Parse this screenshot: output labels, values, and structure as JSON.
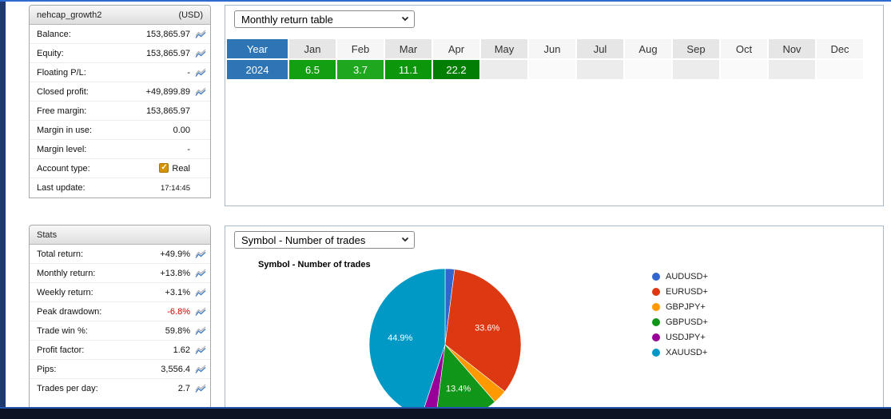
{
  "colors": {
    "accent_blue": "#2e75b5",
    "negative_red": "#cc0000",
    "edge_blue": "#2e6bd0",
    "left_strip_navy": "#1e3a6e",
    "bottom_bar_navy": "#0c1424"
  },
  "account_panel": {
    "title": "nehcap_growth2",
    "currency": "(USD)",
    "rows": [
      {
        "label": "Balance:",
        "value": "153,865.97",
        "icon": true
      },
      {
        "label": "Equity:",
        "value": "153,865.97",
        "icon": true
      },
      {
        "label": "Floating P/L:",
        "value": "-",
        "icon": true
      },
      {
        "label": "Closed profit:",
        "value": "+49,899.89",
        "icon": true
      },
      {
        "label": "Free margin:",
        "value": "153,865.97",
        "icon": false
      },
      {
        "label": "Margin in use:",
        "value": "0.00",
        "icon": false
      },
      {
        "label": "Margin level:",
        "value": "-",
        "icon": false
      },
      {
        "label": "Account type:",
        "value": "Real",
        "icon": false,
        "checkbox": true
      },
      {
        "label": "Last update:",
        "value": "17:14:45",
        "icon": false,
        "small": true
      }
    ]
  },
  "stats_panel": {
    "title": "Stats",
    "rows": [
      {
        "label": "Total return:",
        "value": "+49.9%",
        "icon": true
      },
      {
        "label": "Monthly return:",
        "value": "+13.8%",
        "icon": true
      },
      {
        "label": "Weekly return:",
        "value": "+3.1%",
        "icon": true
      },
      {
        "label": "Peak drawdown:",
        "value": "-6.8%",
        "icon": true,
        "negative": true
      },
      {
        "label": "Trade win %:",
        "value": "59.8%",
        "icon": true
      },
      {
        "label": "Profit factor:",
        "value": "1.62",
        "icon": true
      },
      {
        "label": "Pips:",
        "value": "3,556.4",
        "icon": true
      },
      {
        "label": "Trades per day:",
        "value": "2.7",
        "icon": true
      }
    ]
  },
  "monthly_panel": {
    "view_select": "Monthly return table",
    "columns": [
      "Year",
      "Jan",
      "Feb",
      "Mar",
      "Apr",
      "May",
      "Jun",
      "Jul",
      "Aug",
      "Sep",
      "Oct",
      "Nov",
      "Dec"
    ],
    "rows": [
      {
        "year": "2024",
        "values": [
          "6.5",
          "3.7",
          "11.1",
          "22.2",
          "",
          "",
          "",
          "",
          "",
          "",
          "",
          ""
        ],
        "value_colors": [
          "#12a012",
          "#1fa81f",
          "#0b960b",
          "#027e02",
          "",
          "",
          "",
          "",
          "",
          "",
          "",
          ""
        ]
      }
    ]
  },
  "symbol_panel": {
    "view_select": "Symbol - Number of trades",
    "chart_title": "Symbol - Number of trades"
  },
  "chart_data": [
    {
      "type": "table",
      "title": "Monthly return table",
      "columns": [
        "Year",
        "Jan",
        "Feb",
        "Mar",
        "Apr",
        "May",
        "Jun",
        "Jul",
        "Aug",
        "Sep",
        "Oct",
        "Nov",
        "Dec"
      ],
      "rows": [
        {
          "Year": 2024,
          "Jan": 6.5,
          "Feb": 3.7,
          "Mar": 11.1,
          "Apr": 22.2,
          "May": null,
          "Jun": null,
          "Jul": null,
          "Aug": null,
          "Sep": null,
          "Oct": null,
          "Nov": null,
          "Dec": null
        }
      ]
    },
    {
      "type": "pie",
      "title": "Symbol - Number of trades",
      "legend_position": "right",
      "start_angle": "top",
      "direction": "clockwise",
      "slices": [
        {
          "name": "AUDUSD+",
          "value": 2.0,
          "color": "#3366cc",
          "label": ""
        },
        {
          "name": "EURUSD+",
          "value": 33.6,
          "color": "#dc3912",
          "label": "33.6%"
        },
        {
          "name": "GBPJPY+",
          "value": 3.0,
          "color": "#ff9900",
          "label": ""
        },
        {
          "name": "GBPUSD+",
          "value": 13.4,
          "color": "#109618",
          "label": "13.4%"
        },
        {
          "name": "USDJPY+",
          "value": 3.1,
          "color": "#990099",
          "label": ""
        },
        {
          "name": "XAUUSD+",
          "value": 44.9,
          "color": "#0099c6",
          "label": "44.9%"
        }
      ]
    }
  ]
}
